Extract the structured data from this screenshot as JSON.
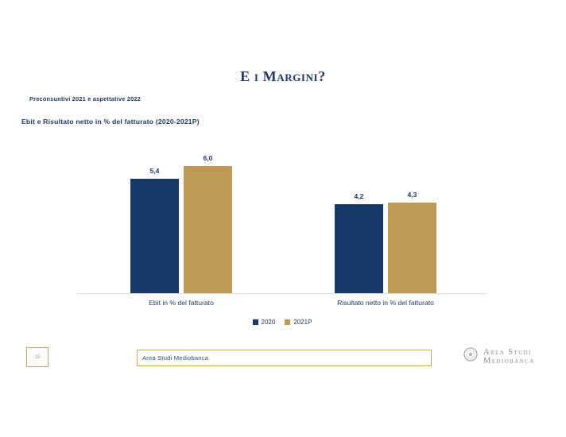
{
  "colors": {
    "navy": "#153A69",
    "gold": "#BF9A55",
    "title_navy": "#1F3864",
    "footer_border_gold": "#C9A662",
    "baseline_gray": "#DEDEDE",
    "logo_gray": "#8E8E8E"
  },
  "header": {
    "title": "E i Margini?",
    "subtitle": "Preconsuntivi 2021 e aspettative 2022",
    "chart_heading": "Ebit e Risultato netto in % del fatturato (2020-2021P)"
  },
  "chart_data": {
    "type": "bar",
    "title": "Ebit e Risultato netto in % del fatturato (2020-2021P)",
    "categories": [
      "Ebit in % del fatturato",
      "Risultato netto in % del fatturato"
    ],
    "series": [
      {
        "name": "2020",
        "color": "#153A69",
        "values": [
          5.4,
          4.2
        ],
        "value_labels": [
          "5,4",
          "4,2"
        ]
      },
      {
        "name": "2021P",
        "color": "#BF9A55",
        "values": [
          6.0,
          4.3
        ],
        "value_labels": [
          "6,0",
          "4,3"
        ]
      }
    ],
    "xlabel": "",
    "ylabel": "",
    "ylim": [
      0,
      7
    ],
    "grid": false,
    "axis_labels_visible": false,
    "legend_position": "bottom"
  },
  "footer": {
    "page_number": "15",
    "source_box_text": "Area Studi Mediobanca",
    "logo_line1": "Area Studi",
    "logo_line2": "Mediobanca"
  }
}
